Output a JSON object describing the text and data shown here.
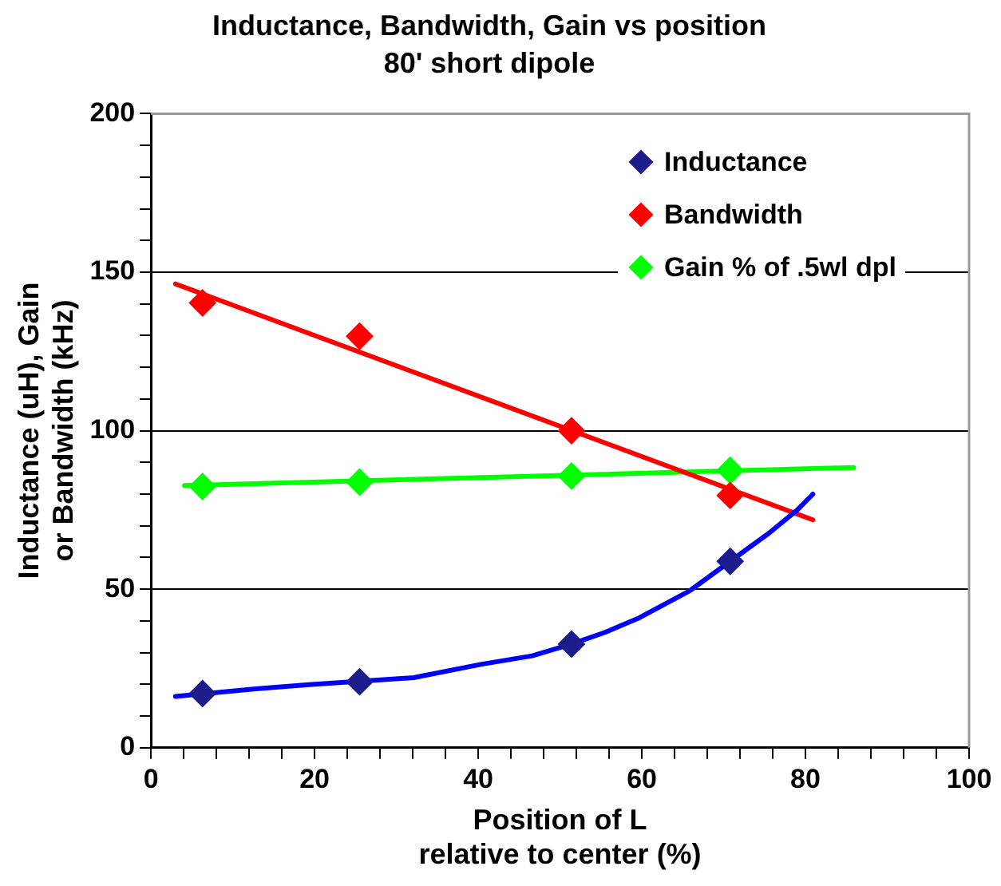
{
  "chart_data": {
    "type": "scatter",
    "title": "Inductance, Bandwidth, Gain vs position",
    "subtitle": "80' short dipole",
    "xlabel": "Position of L\nrelative to center (%)",
    "ylabel": "Inductance (uH), Gain\nor Bandwidth (kHz)",
    "xlim": [
      0,
      100
    ],
    "ylim": [
      0,
      200
    ],
    "xticks": [
      0,
      {
        "value": 4,
        "label": null
      },
      {
        "value": 8,
        "label": null
      },
      {
        "value": 12,
        "label": null
      },
      {
        "value": 16,
        "label": null
      },
      20,
      {
        "value": 24,
        "label": null
      },
      {
        "value": 28,
        "label": null
      },
      {
        "value": 32,
        "label": null
      },
      {
        "value": 36,
        "label": null
      },
      40,
      {
        "value": 44,
        "label": null
      },
      {
        "value": 48,
        "label": null
      },
      {
        "value": 52,
        "label": null
      },
      {
        "value": 56,
        "label": null
      },
      60,
      {
        "value": 64,
        "label": null
      },
      {
        "value": 68,
        "label": null
      },
      {
        "value": 72,
        "label": null
      },
      {
        "value": 76,
        "label": null
      },
      80,
      {
        "value": 84,
        "label": null
      },
      {
        "value": 88,
        "label": null
      },
      {
        "value": 92,
        "label": null
      },
      {
        "value": 96,
        "label": null
      },
      100
    ],
    "yticks": [
      0,
      {
        "value": 10,
        "label": null
      },
      {
        "value": 20,
        "label": null
      },
      {
        "value": 30,
        "label": null
      },
      {
        "value": 40,
        "label": null
      },
      50,
      {
        "value": 60,
        "label": null
      },
      {
        "value": 70,
        "label": null
      },
      {
        "value": 80,
        "label": null
      },
      {
        "value": 90,
        "label": null
      },
      100,
      {
        "value": 110,
        "label": null
      },
      {
        "value": 120,
        "label": null
      },
      {
        "value": 130,
        "label": null
      },
      {
        "value": 140,
        "label": null
      },
      150,
      {
        "value": 160,
        "label": null
      },
      {
        "value": 170,
        "label": null
      },
      {
        "value": 180,
        "label": null
      },
      {
        "value": 190,
        "label": null
      },
      200
    ],
    "grid": "y",
    "legend": "top right",
    "series": [
      {
        "type": "line",
        "color": "#0000ff",
        "marker": "none",
        "x": [
          3,
          12.8,
          19.3,
          32.1,
          40.3,
          46.6,
          51.4,
          55.5,
          59.7,
          65.9,
          70.8,
          75.5,
          79,
          80.9
        ],
        "values": [
          16.2,
          18.6,
          19.9,
          22.1,
          26.3,
          29,
          32.7,
          36.4,
          41,
          49.6,
          58.8,
          67.6,
          75,
          80
        ]
      },
      {
        "type": "line",
        "color": "#ff0000",
        "marker": "none",
        "x": [
          3,
          80.9
        ],
        "values": [
          146.3,
          71.9
        ]
      },
      {
        "type": "line",
        "color": "#00ff00",
        "marker": "none",
        "x": [
          4.1,
          85.9
        ],
        "values": [
          82.7,
          88.4
        ]
      },
      {
        "name": "Inductance",
        "type": "scatter",
        "color": "#1c1c8c",
        "marker": "diamond",
        "x": [
          6.3,
          25.5,
          51.4,
          70.8
        ],
        "values": [
          17.1,
          20.8,
          32.7,
          58.8
        ]
      },
      {
        "name": "Bandwidth",
        "type": "scatter",
        "color": "#ff0000",
        "marker": "diamond",
        "x": [
          6.3,
          25.5,
          51.4,
          70.8
        ],
        "values": [
          140.3,
          129.8,
          100,
          79.6
        ]
      },
      {
        "name": "Gain % of .5wl dpl",
        "type": "scatter",
        "color": "#00ff00",
        "marker": "diamond",
        "x": [
          6.3,
          25.5,
          51.4,
          70.8
        ],
        "values": [
          82.4,
          83.8,
          85.7,
          87.5
        ]
      }
    ]
  }
}
